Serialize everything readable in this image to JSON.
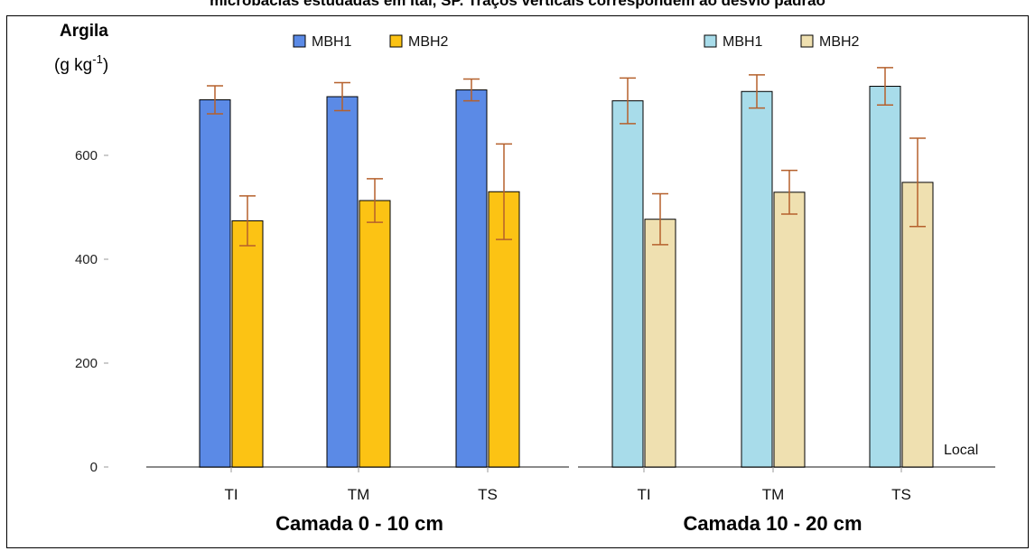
{
  "caption": "microbacias estudadas em Itaí, SP. Traços verticais correspondem ao desvio padrão",
  "chart_data": {
    "type": "bar",
    "y_title_line1": "Argila",
    "y_title_unit_base": "(g kg",
    "y_title_unit_sup": "-1",
    "y_title_unit_close": ")",
    "ylim": [
      0,
      760
    ],
    "yticks": [
      0,
      200,
      400,
      600
    ],
    "x_axis_label": "Local",
    "panels": [
      {
        "label": "Camada 0 - 10 cm",
        "categories": [
          "TI",
          "TM",
          "TS"
        ],
        "series": [
          {
            "name": "MBH1",
            "color": "#5b8ae6",
            "values": [
              707,
              713,
              726
            ],
            "errors": [
              27,
              27,
              21
            ]
          },
          {
            "name": "MBH2",
            "color": "#fcc314",
            "values": [
              474,
              513,
              530
            ],
            "errors": [
              48,
              42,
              92
            ]
          }
        ]
      },
      {
        "label": "Camada 10 - 20 cm",
        "categories": [
          "TI",
          "TM",
          "TS"
        ],
        "series": [
          {
            "name": "MBH1",
            "color": "#a8dcea",
            "values": [
              705,
              723,
              733
            ],
            "errors": [
              44,
              32,
              36
            ]
          },
          {
            "name": "MBH2",
            "color": "#efe0b0",
            "values": [
              477,
              529,
              548
            ],
            "errors": [
              49,
              42,
              85
            ]
          }
        ]
      }
    ],
    "error_bar_color": "#b5602c"
  }
}
